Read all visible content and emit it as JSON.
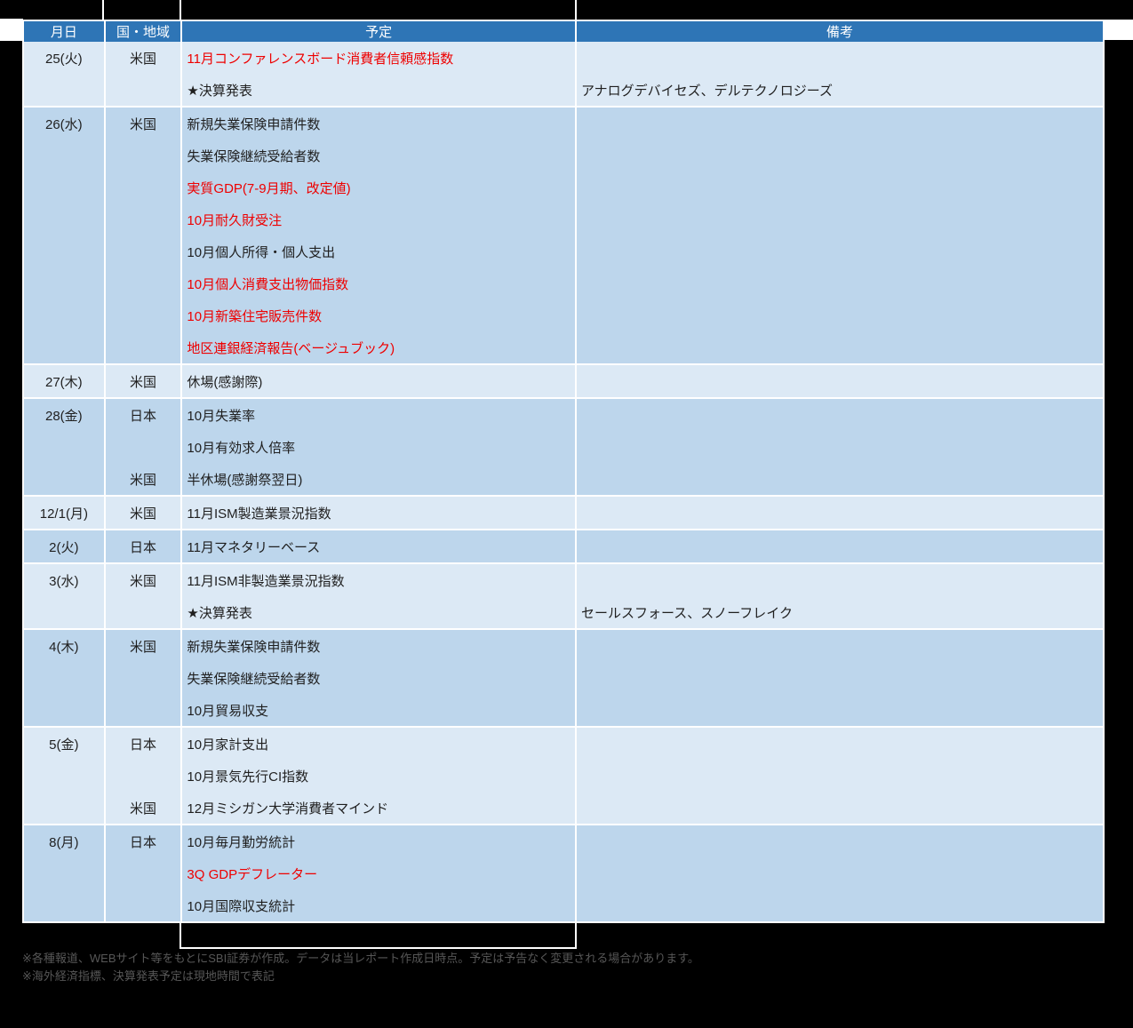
{
  "header": {
    "cols": [
      "月日",
      "国・地域",
      "予定",
      "備考"
    ]
  },
  "table": {
    "rows": [
      {
        "date": "25(火)",
        "items": [
          {
            "country": "米国",
            "text": "11月コンファレンスボード消費者信頼感指数",
            "red": true
          },
          {
            "text": "★決算発表",
            "remark": "アナログデバイセズ、デルテクノロジーズ"
          }
        ]
      },
      {
        "date": "26(水)",
        "items": [
          {
            "country": "米国",
            "text": "新規失業保険申請件数"
          },
          {
            "text": "失業保険継続受給者数"
          },
          {
            "text": "実質GDP(7-9月期、改定値)",
            "red": true
          },
          {
            "text": "10月耐久財受注",
            "red": true
          },
          {
            "text": "10月個人所得・個人支出"
          },
          {
            "text": "10月個人消費支出物価指数",
            "red": true
          },
          {
            "text": "10月新築住宅販売件数",
            "red": true
          },
          {
            "text": "地区連銀経済報告(ベージュブック)",
            "red": true
          }
        ]
      },
      {
        "date": "27(木)",
        "items": [
          {
            "country": "米国",
            "text": "休場(感謝際)"
          }
        ]
      },
      {
        "date": "28(金)",
        "items": [
          {
            "country": "日本",
            "text": "10月失業率"
          },
          {
            "text": "10月有効求人倍率"
          },
          {
            "country": "米国",
            "text": "半休場(感謝祭翌日)"
          }
        ]
      },
      {
        "date": "12/1(月)",
        "items": [
          {
            "country": "米国",
            "text": "11月ISM製造業景況指数"
          }
        ]
      },
      {
        "date": "2(火)",
        "items": [
          {
            "country": "日本",
            "text": "11月マネタリーベース"
          }
        ]
      },
      {
        "date": "3(水)",
        "items": [
          {
            "country": "米国",
            "text": "11月ISM非製造業景況指数"
          },
          {
            "text": "★決算発表",
            "remark": "セールスフォース、スノーフレイク"
          }
        ]
      },
      {
        "date": "4(木)",
        "items": [
          {
            "country": "米国",
            "text": "新規失業保険申請件数"
          },
          {
            "text": "失業保険継続受給者数"
          },
          {
            "text": "10月貿易収支"
          }
        ]
      },
      {
        "date": "5(金)",
        "items": [
          {
            "country": "日本",
            "text": "10月家計支出"
          },
          {
            "text": "10月景気先行CI指数"
          },
          {
            "country": "米国",
            "text": "12月ミシガン大学消費者マインド"
          }
        ]
      },
      {
        "date": "8(月)",
        "items": [
          {
            "country": "日本",
            "text": "10月毎月勤労統計"
          },
          {
            "text": "3Q GDPデフレーター",
            "red": true
          },
          {
            "text": "10月国際収支統計"
          }
        ]
      }
    ]
  },
  "footer": {
    "line1": "※各種報道、WEBサイト等をもとにSBI証券が作成。データは当レポート作成日時点。予定は予告なく変更される場合があります。",
    "line2": "※海外経済指標、決算発表予定は現地時間で表記"
  },
  "colors": {
    "background": "#000000",
    "grid": "#FFFFFF",
    "header_bg": "#2E75B6",
    "header_text": "#FFFFFF",
    "row_light": "#DCE9F5",
    "row_dark": "#BDD6EC",
    "black_text": "#1F1F1F",
    "red_text": "#EE0000"
  }
}
